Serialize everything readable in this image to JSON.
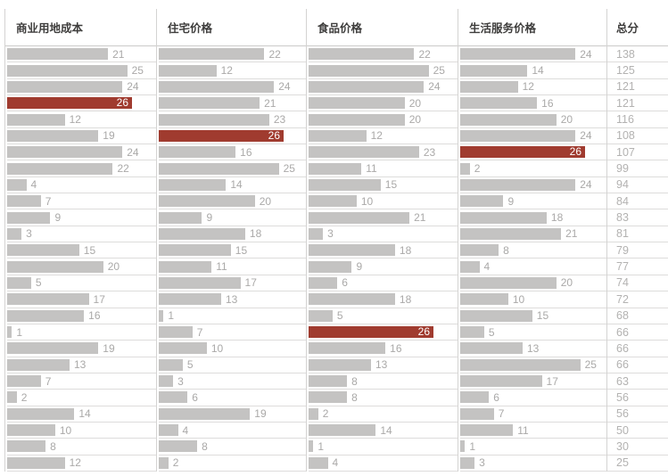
{
  "chart_data": {
    "type": "bar",
    "orientation": "horizontal",
    "max_value": 26,
    "highlight_value": 26,
    "rows": 26,
    "grid": true,
    "legend_position": "none",
    "series": [
      {
        "name": "商业用地成本",
        "values": [
          21,
          25,
          24,
          26,
          12,
          19,
          24,
          22,
          4,
          7,
          9,
          3,
          15,
          20,
          5,
          17,
          16,
          1,
          19,
          13,
          7,
          2,
          14,
          10,
          8,
          12
        ]
      },
      {
        "name": "住宅价格",
        "values": [
          22,
          12,
          24,
          21,
          23,
          26,
          16,
          25,
          14,
          20,
          9,
          18,
          15,
          11,
          17,
          13,
          1,
          7,
          10,
          5,
          3,
          6,
          19,
          4,
          8,
          2
        ]
      },
      {
        "name": "食品价格",
        "values": [
          22,
          25,
          24,
          20,
          20,
          12,
          23,
          11,
          15,
          10,
          21,
          3,
          18,
          9,
          6,
          18,
          5,
          26,
          16,
          13,
          8,
          8,
          2,
          14,
          1,
          4
        ]
      },
      {
        "name": "生活服务价格",
        "values": [
          24,
          14,
          12,
          16,
          20,
          24,
          26,
          2,
          24,
          9,
          18,
          21,
          8,
          4,
          20,
          10,
          15,
          5,
          13,
          25,
          17,
          6,
          7,
          11,
          1,
          3
        ]
      }
    ],
    "totals": {
      "name": "总分",
      "values": [
        138,
        125,
        121,
        121,
        116,
        108,
        107,
        99,
        94,
        84,
        83,
        81,
        79,
        77,
        74,
        72,
        68,
        66,
        66,
        66,
        63,
        56,
        56,
        50,
        30,
        25
      ]
    },
    "colors": {
      "bar": "#c4c3c2",
      "highlight_bar": "#a03b2f",
      "bar_label": "#aaa9a8",
      "highlight_label": "#ffffff",
      "total_text": "#b3b2b1",
      "header_text": "#3e3d3c",
      "grid_line": "#dddcdb",
      "column_line": "#d4d3d2",
      "header_line": "#cbcac9",
      "background": "#ffffff"
    }
  }
}
